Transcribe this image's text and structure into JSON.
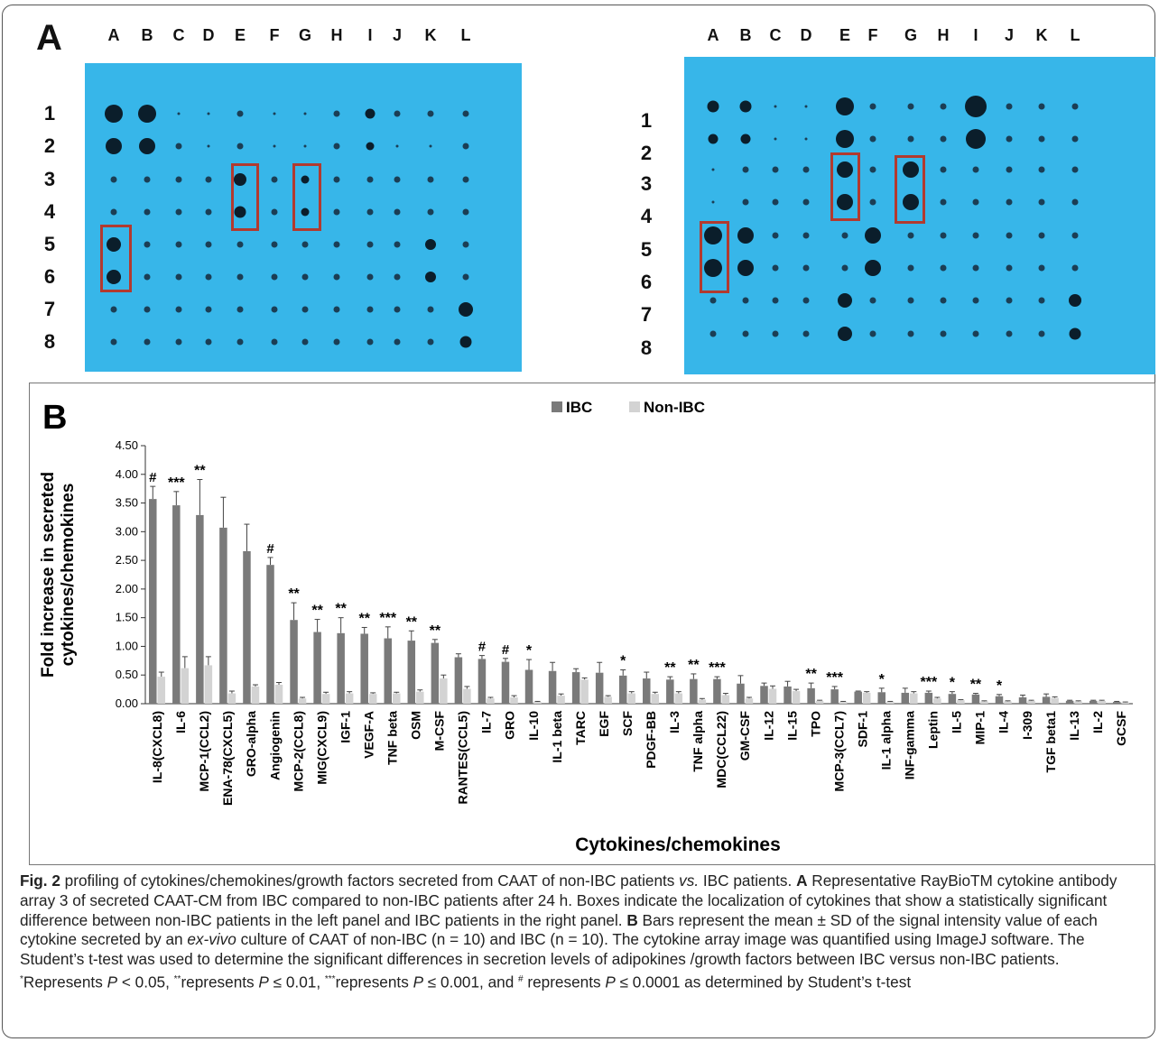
{
  "panel_a": {
    "letter": "A",
    "columns": [
      "A",
      "B",
      "C",
      "D",
      "E",
      "F",
      "G",
      "H",
      "I",
      "J",
      "K",
      "L"
    ],
    "rows": [
      "1",
      "2",
      "3",
      "4",
      "5",
      "6",
      "7",
      "8"
    ]
  },
  "chart_data": {
    "type": "bar",
    "panel_letter": "B",
    "title": "",
    "xlabel": "Cytokines/chemokines",
    "ylabel_lines": [
      "Fold increase in secreted",
      "cytokines/chemokines"
    ],
    "ylim": [
      0,
      4.5
    ],
    "yticks": [
      "0.00",
      "0.50",
      "1.00",
      "1.50",
      "2.00",
      "2.50",
      "3.00",
      "3.50",
      "4.00",
      "4.50"
    ],
    "legend_position": "top-center",
    "grid": false,
    "categories": [
      "IL-8(CXCL8)",
      "IL-6",
      "MCP-1(CCL2)",
      "ENA-78(CXCL5)",
      "GRO-alpha",
      "Angiogenin",
      "MCP-2(CCL8)",
      "MIG(CXCL9)",
      "IGF-1",
      "VEGF-A",
      "TNF beta",
      "OSM",
      "M-CSF",
      "RANTES(CCL5)",
      "IL-7",
      "GRO",
      "IL-10",
      "IL-1 beta",
      "TARC",
      "EGF",
      "SCF",
      "PDGF-BB",
      "IL-3",
      "TNF alpha",
      "MDC(CCL22)",
      "GM-CSF",
      "IL-12",
      "IL-15",
      "TPO",
      "MCP-3(CCL7)",
      "SDF-1",
      "IL-1 alpha",
      "INF-gamma",
      "Leptin",
      "IL-5",
      "MIP-1",
      "IL-4",
      "I-309",
      "TGF beta1",
      "IL-13",
      "IL-2",
      "GCSF"
    ],
    "series": [
      {
        "name": "IBC",
        "color": "#7a7a7a",
        "values": [
          3.57,
          3.46,
          3.29,
          3.07,
          2.66,
          2.42,
          1.46,
          1.25,
          1.23,
          1.22,
          1.14,
          1.1,
          1.06,
          0.81,
          0.78,
          0.73,
          0.59,
          0.57,
          0.55,
          0.54,
          0.49,
          0.44,
          0.42,
          0.43,
          0.43,
          0.35,
          0.31,
          0.3,
          0.27,
          0.25,
          0.21,
          0.2,
          0.19,
          0.19,
          0.17,
          0.16,
          0.13,
          0.11,
          0.12,
          0.05,
          0.05,
          0.03
        ],
        "errors": [
          0.22,
          0.24,
          0.62,
          0.53,
          0.47,
          0.13,
          0.3,
          0.22,
          0.27,
          0.11,
          0.2,
          0.17,
          0.06,
          0.06,
          0.06,
          0.06,
          0.18,
          0.15,
          0.06,
          0.18,
          0.1,
          0.11,
          0.05,
          0.09,
          0.04,
          0.14,
          0.05,
          0.09,
          0.09,
          0.05,
          0.01,
          0.07,
          0.08,
          0.03,
          0.04,
          0.02,
          0.03,
          0.04,
          0.05,
          0.01,
          0.01,
          0.01
        ]
      },
      {
        "name": "Non-IBC",
        "color": "#d3d3d3",
        "values": [
          0.47,
          0.62,
          0.67,
          0.18,
          0.3,
          0.33,
          0.09,
          0.17,
          0.18,
          0.17,
          0.18,
          0.21,
          0.44,
          0.26,
          0.09,
          0.11,
          0.03,
          0.14,
          0.42,
          0.12,
          0.18,
          0.17,
          0.18,
          0.07,
          0.15,
          0.09,
          0.26,
          0.22,
          0.05,
          0.03,
          0.19,
          0.03,
          0.18,
          0.09,
          0.06,
          0.04,
          0.04,
          0.05,
          0.1,
          0.04,
          0.05,
          0.02
        ],
        "errors": [
          0.08,
          0.2,
          0.15,
          0.04,
          0.03,
          0.04,
          0.02,
          0.03,
          0.03,
          0.02,
          0.02,
          0.03,
          0.06,
          0.04,
          0.02,
          0.03,
          0.01,
          0.03,
          0.03,
          0.02,
          0.03,
          0.03,
          0.03,
          0.02,
          0.03,
          0.02,
          0.05,
          0.03,
          0.01,
          0.01,
          0.02,
          0.01,
          0.03,
          0.02,
          0.01,
          0.01,
          0.01,
          0.01,
          0.02,
          0.01,
          0.01,
          0.01
        ]
      }
    ],
    "significance": [
      "#",
      "***",
      "**",
      "",
      "",
      "#",
      "**",
      "**",
      "**",
      "**",
      "***",
      "**",
      "**",
      "",
      "#",
      "#",
      "*",
      "",
      "",
      "",
      "*",
      "",
      "**",
      "**",
      "***",
      "",
      "",
      "",
      "**",
      "***",
      "",
      "*",
      "",
      "***",
      "*",
      "**",
      "*",
      "",
      "",
      "",
      "",
      ""
    ]
  },
  "caption": {
    "fig_label": "Fig. 2",
    "p1": " profiling of cytokines/chemokines/growth factors secreted from CAAT of non-IBC patients ",
    "vs": "vs.",
    "p2": " IBC patients. ",
    "a_label": "A",
    "p3": " Representative RayBioTM cytokine antibody array 3 of secreted CAAT-CM from IBC compared to non-IBC patients after 24 h. Boxes indicate the localization of cytokines that show a statistically significant difference between non-IBC patients in the left panel and IBC patients in the right panel. ",
    "b_label": "B",
    "p4": " Bars represent the mean ± SD of the signal intensity value of each cytokine secreted by an ",
    "exvivo": "ex-vivo",
    "p5": " culture of CAAT of non-IBC (n = 10) and IBC (n = 10). The cytokine array image was quantified using ImageJ software. The Student’s t-test was used to determine the significant differences in secretion levels of adipokines /growth factors between IBC versus non-IBC patients. ",
    "s1": "*",
    "p6": "Represents ",
    "P1": "P",
    "p7": " < 0.05, ",
    "s2": "**",
    "p8": "represents ",
    "P2": "P",
    "p9": " ≤ 0.01, ",
    "s3": "***",
    "p10": "represents ",
    "P3": "P",
    "p11": " ≤ 0.001, and ",
    "s4": "#",
    "p12": " represents ",
    "P4": "P",
    "p13": " ≤ 0.0001 as determined by Student’s t-test"
  }
}
